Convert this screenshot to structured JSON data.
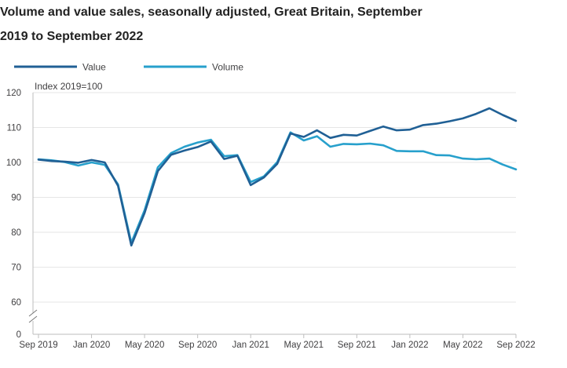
{
  "page": {
    "title_line1": "Volume and value sales, seasonally adjusted, Great Britain, September",
    "title_line2": "2019 to September 2022"
  },
  "colors": {
    "value": "#206095",
    "volume": "#27a0cc",
    "axis": "#bebebe",
    "grid": "#e6e6e6",
    "text": "#414042",
    "title": "#222222"
  },
  "chart_data": {
    "type": "line",
    "title": "Volume and value sales, seasonally adjusted, Great Britain, September 2019 to September 2022",
    "ylabel": "Index 2019=100",
    "xlabel": "",
    "ylim": [
      0,
      120
    ],
    "axis_break": true,
    "axis_break_range": [
      0,
      60
    ],
    "grid": true,
    "legend_position": "top-left",
    "yticks": [
      0,
      60,
      70,
      80,
      90,
      100,
      110,
      120
    ],
    "ytick_labels": [
      "0",
      "60",
      "70",
      "80",
      "90",
      "100",
      "110",
      "120"
    ],
    "xtick_labels": [
      "Sep 2019",
      "Jan 2020",
      "May 2020",
      "Sep 2020",
      "Jan 2021",
      "May 2021",
      "Sep 2021",
      "Jan 2022",
      "May 2022",
      "Sep 2022"
    ],
    "xtick_indices": [
      0,
      4,
      8,
      12,
      16,
      20,
      24,
      28,
      32,
      36
    ],
    "categories": [
      "Sep 2019",
      "Oct 2019",
      "Nov 2019",
      "Dec 2019",
      "Jan 2020",
      "Feb 2020",
      "Mar 2020",
      "Apr 2020",
      "May 2020",
      "Jun 2020",
      "Jul 2020",
      "Aug 2020",
      "Sep 2020",
      "Oct 2020",
      "Nov 2020",
      "Dec 2020",
      "Jan 2021",
      "Feb 2021",
      "Mar 2021",
      "Apr 2021",
      "May 2021",
      "Jun 2021",
      "Jul 2021",
      "Aug 2021",
      "Sep 2021",
      "Oct 2021",
      "Nov 2021",
      "Dec 2021",
      "Jan 2022",
      "Feb 2022",
      "Mar 2022",
      "Apr 2022",
      "May 2022",
      "Jun 2022",
      "Jul 2022",
      "Aug 2022",
      "Sep 2022"
    ],
    "series": [
      {
        "name": "Value",
        "values": [
          100.8,
          100.4,
          100.2,
          99.9,
          100.7,
          100.0,
          93.3,
          76.2,
          85.5,
          97.5,
          102.2,
          103.4,
          104.4,
          106.0,
          101.0,
          101.9,
          93.5,
          95.7,
          99.6,
          108.3,
          107.3,
          109.2,
          107.0,
          107.9,
          107.7,
          109.0,
          110.3,
          109.2,
          109.4,
          110.7,
          111.1,
          111.8,
          112.6,
          113.9,
          115.5,
          113.6,
          111.9
        ]
      },
      {
        "name": "Volume",
        "values": [
          100.9,
          100.6,
          100.1,
          99.1,
          100.0,
          99.3,
          93.7,
          77.0,
          86.3,
          98.6,
          102.7,
          104.5,
          105.7,
          106.5,
          101.8,
          102.1,
          94.4,
          96.0,
          100.1,
          108.6,
          106.3,
          107.5,
          104.5,
          105.3,
          105.2,
          105.4,
          104.9,
          103.3,
          103.2,
          103.2,
          102.1,
          102.0,
          101.1,
          100.9,
          101.1,
          99.4,
          98.0
        ]
      }
    ]
  }
}
